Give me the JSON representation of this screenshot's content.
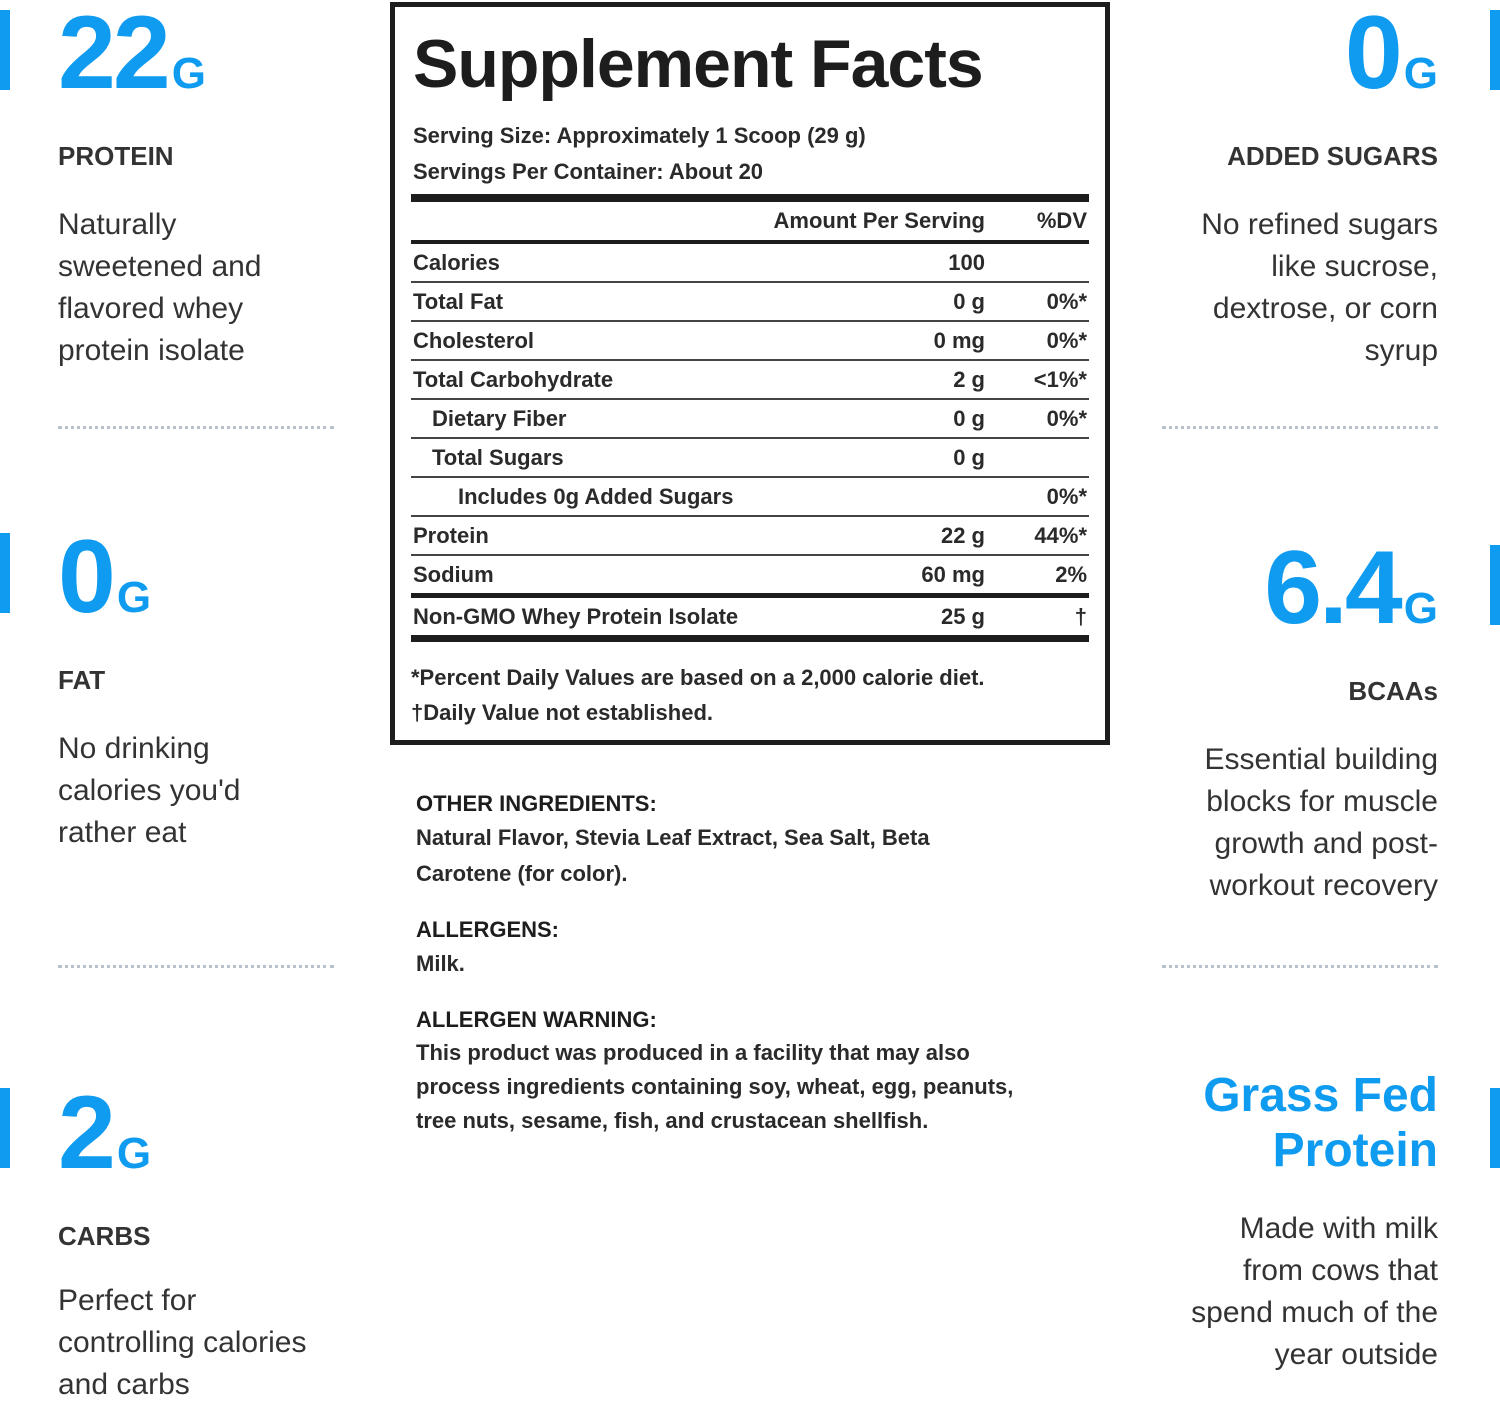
{
  "left_features": [
    {
      "number": "22",
      "unit": "G",
      "label": "PROTEIN",
      "description": [
        "Naturally",
        "sweetened and",
        "flavored whey",
        "protein isolate"
      ]
    },
    {
      "number": "0",
      "unit": "G",
      "label": "FAT",
      "description": [
        "No drinking",
        "calories you'd",
        "rather eat"
      ]
    },
    {
      "number": "2",
      "unit": "G",
      "label": "CARBS",
      "description": [
        "Perfect for",
        "controlling calories",
        "and carbs"
      ]
    }
  ],
  "right_features": [
    {
      "number": "0",
      "unit": "G",
      "label": "ADDED SUGARS",
      "description": [
        "No refined sugars",
        "like sucrose,",
        "dextrose, or corn",
        "syrup"
      ]
    },
    {
      "number": "6.4",
      "unit": "G",
      "label": "BCAAs",
      "description": [
        "Essential building",
        "blocks for muscle",
        "growth and post-",
        "workout recovery"
      ]
    },
    {
      "title": [
        "Grass Fed",
        "Protein"
      ],
      "description": [
        "Made with milk",
        "from cows that",
        "spend much of the",
        "year outside"
      ]
    }
  ],
  "supplement_facts": {
    "title": "Supplement Facts",
    "serving_size": "Serving Size: Approximately 1 Scoop (29 g)",
    "servings_per_container": "Servings Per Container: About 20",
    "header": {
      "amount": "Amount Per Serving",
      "dv": "%DV"
    },
    "rows": [
      [
        "Calories",
        "100",
        null
      ],
      [
        "Total Fat",
        "0 g",
        "0%*"
      ],
      [
        "Cholesterol",
        "0 mg",
        "0%*"
      ],
      [
        "Total Carbohydrate",
        "2 g",
        "<1%*"
      ],
      [
        "Dietary Fiber",
        "0 g",
        "0%*"
      ],
      [
        "Total Sugars",
        "0 g",
        null
      ],
      [
        "Includes 0g Added Sugars",
        null,
        "0%*"
      ],
      [
        "Protein",
        "22 g",
        "44%*"
      ],
      [
        "Sodium",
        "60 mg",
        "2%"
      ],
      [
        "Non-GMO Whey Protein Isolate",
        "25 g",
        "†"
      ]
    ],
    "footnotes": [
      "*Percent Daily Values are based on a 2,000 calorie diet.",
      "†Daily Value not established."
    ]
  },
  "ingredients": [
    {
      "heading": "OTHER INGREDIENTS:",
      "lines": [
        "Natural Flavor, Stevia Leaf Extract, Sea Salt, Beta",
        "Carotene (for color)."
      ]
    },
    {
      "heading": "ALLERGENS:",
      "lines": [
        "Milk."
      ]
    },
    {
      "heading": "ALLERGEN WARNING:",
      "lines": [
        "This product was produced in a facility that may also",
        "process ingredients containing soy, wheat, egg, peanuts,",
        "tree nuts, sesame, fish, and crustacean shellfish."
      ]
    }
  ]
}
